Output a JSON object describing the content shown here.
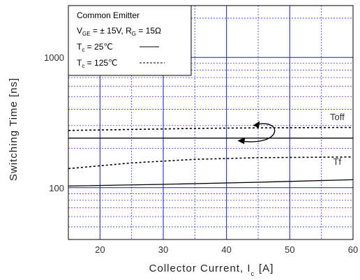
{
  "chart_data": {
    "type": "line",
    "xlabel": "Collector Current, I",
    "xlabel_sub": "c",
    "xlabel_unit": "[A]",
    "ylabel": "Switching Time [ns]",
    "xlim": [
      15,
      60
    ],
    "ylim": [
      40,
      2500
    ],
    "yscale": "log",
    "grid": true,
    "xticks": [
      20,
      30,
      40,
      50,
      60
    ],
    "yticks": [
      100,
      1000
    ],
    "legend": {
      "placement": "top-left",
      "line1": "Common Emitter",
      "line2": {
        "v": "V",
        "v_sub": "GE",
        "eq": " = ±  15V, R",
        "r_sub": "G",
        "r_val": " = 15Ω"
      },
      "line3": {
        "t": "T",
        "t_sub": "c",
        "text": " =   25℃"
      },
      "line4": {
        "t": "T",
        "t_sub": "c",
        "text": " = 125℃"
      }
    },
    "series": [
      {
        "name": "Toff",
        "condition": "25℃",
        "style": "solid",
        "x": [
          15,
          60
        ],
        "y": [
          240,
          240
        ]
      },
      {
        "name": "Toff",
        "condition": "125℃",
        "style": "dashed",
        "x": [
          15,
          25,
          35,
          45,
          60
        ],
        "y": [
          275,
          280,
          285,
          288,
          290
        ]
      },
      {
        "name": "Tf",
        "condition": "25℃",
        "style": "solid",
        "x": [
          15,
          30,
          45,
          60
        ],
        "y": [
          103,
          106,
          110,
          115
        ]
      },
      {
        "name": "Tf",
        "condition": "125℃",
        "style": "dashed",
        "x": [
          15,
          25,
          35,
          45,
          60
        ],
        "y": [
          140,
          155,
          165,
          170,
          172
        ]
      }
    ],
    "annotations": [
      {
        "label": "Toff",
        "x": 57.5,
        "y": 330
      },
      {
        "label": "Tf",
        "x": 57.5,
        "y": 150
      }
    ]
  }
}
